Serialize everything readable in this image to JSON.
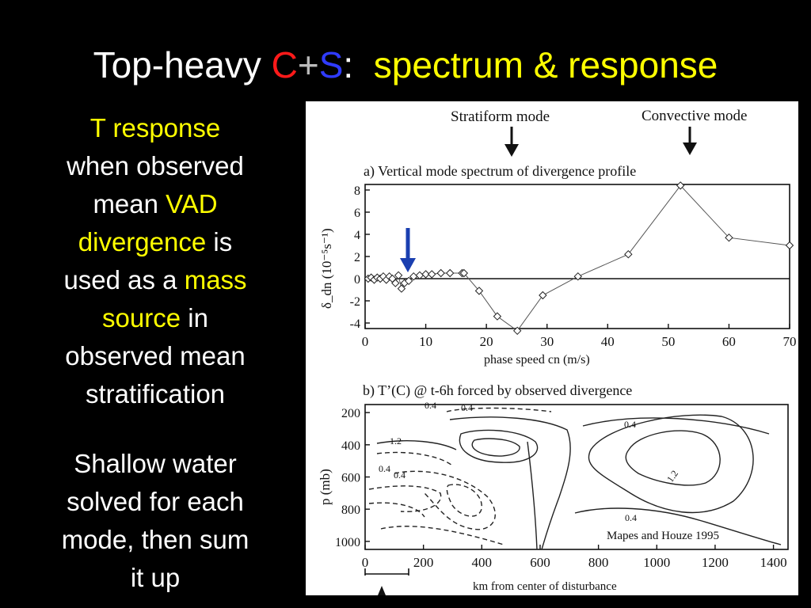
{
  "title": {
    "part1": "Top-heavy ",
    "c": "C",
    "plus": "+",
    "s": "S",
    "colon": ":",
    "part2": "spectrum & response"
  },
  "left_text": {
    "l1": "T response",
    "l2": "when observed",
    "l3a": "mean ",
    "l3b": "VAD",
    "l4a": "divergence",
    "l4b": " is",
    "l5a": "used as a ",
    "l5b": "mass",
    "l6a": "source",
    "l6b": " in",
    "l7": "observed mean",
    "l8": "stratification",
    "p2_l1": "Shallow water",
    "p2_l2": "solved for each",
    "p2_l3": "mode, then sum",
    "p2_l4": "it up"
  },
  "figure": {
    "stratiform_label": "Stratiform mode",
    "convective_label": "Convective mode",
    "panel_a_title": "a) Vertical mode spectrum of divergence profile",
    "panel_a_ylabel": "δ_dn (10⁻⁵s⁻¹)",
    "panel_a_xlabel": "phase speed cn (m/s)",
    "panel_b_title": "b) T’(C) @ t-6h forced by observed divergence",
    "panel_b_ylabel": "p (mb)",
    "panel_b_xlabel": "km from center of disturbance",
    "citation": "Mapes and Houze 1995",
    "contour_labels": [
      "0.4",
      "0.4",
      "1.2",
      "0.4",
      "0.4",
      "0.4",
      "1.2",
      "0.4"
    ]
  },
  "chart_data": [
    {
      "type": "line",
      "title": "a) Vertical mode spectrum of divergence profile",
      "xlabel": "phase speed cn (m/s)",
      "ylabel": "δ_dn (10⁻⁵s⁻¹)",
      "xlim": [
        0,
        70
      ],
      "ylim": [
        -4.5,
        8.5
      ],
      "x_ticks": [
        0,
        10,
        20,
        30,
        40,
        50,
        60,
        70
      ],
      "y_ticks": [
        -4,
        -2,
        0,
        2,
        4,
        6,
        8
      ],
      "annotations": [
        "Stratiform mode",
        "Convective mode"
      ],
      "series": [
        {
          "x": [
            0.5,
            1.0,
            1.5,
            2.0,
            2.5,
            3.0,
            3.5,
            4.0,
            4.5,
            5.0,
            5.5,
            6.0,
            6.5,
            7.2,
            8.0,
            9.0,
            10.0,
            11.0,
            12.5,
            14.0,
            16.0,
            16.3,
            18.8,
            21.8,
            25.1,
            29.3,
            35.1,
            43.4,
            52.0,
            60.0,
            70.0
          ],
          "y": [
            0.0,
            0.1,
            -0.1,
            0.1,
            0.0,
            0.2,
            -0.1,
            0.2,
            0.0,
            -0.4,
            0.3,
            -0.9,
            -0.4,
            -0.2,
            0.2,
            0.3,
            0.4,
            0.4,
            0.5,
            0.5,
            0.5,
            0.5,
            -1.1,
            -3.4,
            -4.7,
            -1.5,
            0.2,
            2.2,
            8.4,
            3.7,
            3.0
          ]
        }
      ]
    },
    {
      "type": "contour",
      "title": "b) T’(C) @ t-6h forced by observed divergence",
      "xlabel": "km from center of disturbance",
      "ylabel": "p (mb)",
      "xlim": [
        0,
        1450
      ],
      "ylim": [
        1050,
        150
      ],
      "x_ticks": [
        0,
        200,
        400,
        600,
        800,
        1000,
        1200,
        1400
      ],
      "y_ticks": [
        200,
        400,
        600,
        800,
        1000
      ],
      "contour_labels": [
        "0.4",
        "0.4",
        "1.2",
        "0.4",
        "0.4",
        "0.4",
        "1.2",
        "0.4"
      ]
    }
  ]
}
